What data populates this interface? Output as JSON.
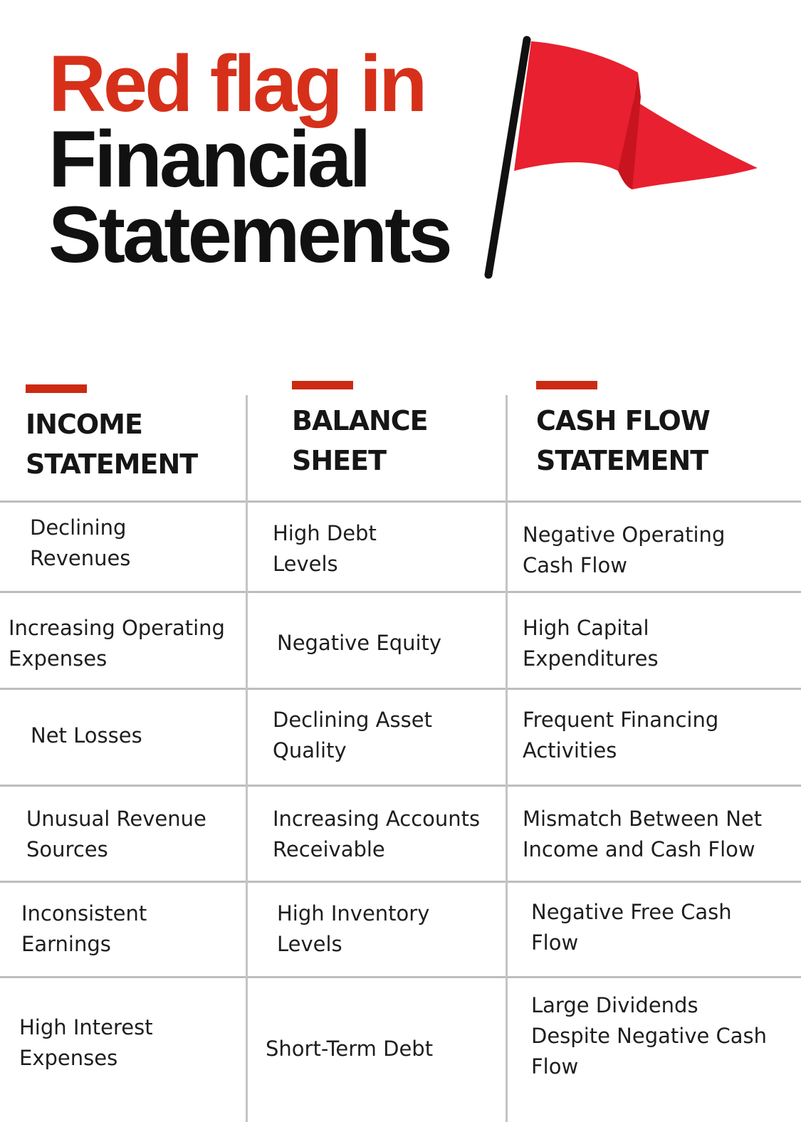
{
  "title": {
    "line1": "Red flag in",
    "line2": "Financial",
    "line3": "Statements"
  },
  "icons": {
    "flag": "red-flag-icon"
  },
  "colors": {
    "accent": "#d6301a",
    "flag_red": "#e8202f",
    "pole": "#111111",
    "grid": "#bdbdbd"
  },
  "columns": [
    {
      "header": "INCOME\nSTATEMENT"
    },
    {
      "header": "BALANCE\nSHEET"
    },
    {
      "header": "CASH FLOW\nSTATEMENT"
    }
  ],
  "rows": [
    [
      "Declining\nRevenues",
      "High Debt\nLevels",
      "Negative Operating\nCash Flow"
    ],
    [
      "Increasing Operating\nExpenses",
      "Negative Equity",
      "High Capital\nExpenditures"
    ],
    [
      "Net Losses",
      "Declining Asset\nQuality",
      "Frequent Financing\nActivities"
    ],
    [
      "Unusual Revenue\nSources",
      "Increasing Accounts\nReceivable",
      "Mismatch Between Net\nIncome and Cash Flow"
    ],
    [
      "Inconsistent\nEarnings",
      "High Inventory\nLevels",
      "Negative Free Cash\nFlow"
    ],
    [
      "High Interest\nExpenses",
      "Short-Term Debt",
      "Large Dividends\nDespite Negative Cash\nFlow"
    ]
  ]
}
